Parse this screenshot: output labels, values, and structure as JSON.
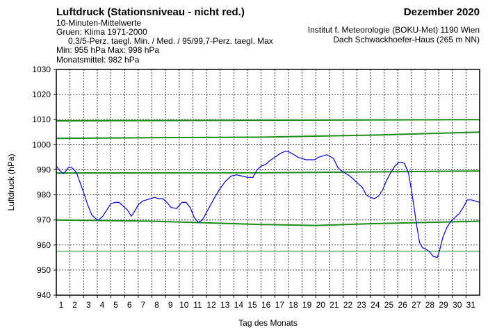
{
  "header": {
    "title": "Luftdruck (Stationsniveau - nicht red.)",
    "subtitle": "10-Minuten-Mittelwerte",
    "climate_note": "Gruen: Klima 1971-2000",
    "percentile_note": "0,3/5-Perz. taegl. Min. / Med. / 95/99,7-Perz. taegl. Max",
    "min_max": "Min:  955 hPa   Max:  998 hPa",
    "monthly_mean": "Monatsmittel:  982 hPa",
    "month": "Dezember 2020",
    "institute": "Institut f. Meteorologie (BOKU-Met) 1190 Wien",
    "location": "Dach Schwackhoefer-Haus (265 m NN)"
  },
  "colors": {
    "observed": "#0000c8",
    "climate": "#1a8c1a",
    "grid": "#000000"
  },
  "chart_data": {
    "type": "line",
    "xlabel": "Tag des Monats",
    "ylabel": "Luftdruck (hPa)",
    "xlim": [
      1,
      32
    ],
    "ylim": [
      940,
      1030
    ],
    "grid": true,
    "x_ticks": [
      "1",
      "2",
      "3",
      "4",
      "5",
      "6",
      "7",
      "8",
      "9",
      "10",
      "11",
      "12",
      "13",
      "14",
      "15",
      "16",
      "17",
      "18",
      "19",
      "20",
      "21",
      "22",
      "23",
      "24",
      "25",
      "26",
      "27",
      "28",
      "29",
      "30",
      "31"
    ],
    "y_ticks": [
      "940",
      "950",
      "960",
      "970",
      "980",
      "990",
      "1000",
      "1010",
      "1020",
      "1030"
    ],
    "series": [
      {
        "role": "observed",
        "x": [
          1.0,
          1.2,
          1.5,
          1.7,
          1.9,
          2.1,
          2.3,
          2.5,
          2.8,
          3.0,
          3.3,
          3.6,
          3.9,
          4.1,
          4.4,
          4.7,
          5.0,
          5.3,
          5.6,
          5.9,
          6.2,
          6.5,
          6.8,
          7.0,
          7.3,
          7.6,
          7.9,
          8.2,
          8.5,
          8.8,
          9.1,
          9.4,
          9.8,
          10.2,
          10.5,
          10.8,
          11.1,
          11.4,
          11.7,
          12.0,
          12.3,
          12.6,
          13.0,
          13.4,
          13.8,
          14.2,
          14.6,
          15.0,
          15.4,
          15.7,
          16.0,
          16.3,
          16.6,
          17.0,
          17.4,
          17.8,
          18.1,
          18.4,
          18.7,
          19.0,
          19.3,
          19.6,
          19.9,
          20.2,
          20.5,
          20.8,
          21.0,
          21.3,
          21.6,
          21.9,
          22.2,
          22.5,
          22.8,
          23.1,
          23.4,
          23.7,
          24.0,
          24.3,
          24.6,
          24.9,
          25.2,
          25.5,
          25.8,
          26.1,
          26.3,
          26.5,
          26.8,
          27.0,
          27.2,
          27.4,
          27.6,
          27.8,
          28.0,
          28.3,
          28.6,
          28.9,
          29.1,
          29.3,
          29.6,
          29.9,
          30.2,
          30.5,
          30.8,
          31.1,
          31.4,
          31.7,
          32.0
        ],
        "y": [
          991.5,
          990,
          988.5,
          989.5,
          991,
          991,
          990,
          988.5,
          984,
          981,
          976,
          972,
          970.5,
          970,
          971.5,
          974,
          976.5,
          977,
          977,
          975.5,
          974,
          971.5,
          974,
          976,
          977.5,
          978,
          978.5,
          979,
          978.5,
          978.5,
          977,
          975,
          974.5,
          977,
          977,
          975,
          971,
          969,
          970,
          973,
          976,
          979,
          982.5,
          985.5,
          987.5,
          988,
          987.5,
          987,
          987,
          990,
          991.5,
          992,
          993.5,
          995,
          996.5,
          997.5,
          997,
          996,
          995,
          994.5,
          994,
          994,
          994,
          995,
          995.5,
          996,
          995.5,
          994.5,
          991,
          989.5,
          988.5,
          987.5,
          986,
          984.5,
          983,
          980,
          979,
          978.5,
          979.5,
          982,
          986,
          989,
          991.5,
          993,
          993,
          992.5,
          988.5,
          982,
          975,
          967.5,
          961,
          959,
          958.5,
          957.5,
          955.5,
          955,
          958.5,
          963,
          967,
          969.5,
          971,
          972.5,
          975,
          978,
          978,
          977.5,
          977
        ]
      },
      {
        "role": "climate-99.7-max",
        "x": [
          1,
          32
        ],
        "y": [
          1009.5,
          1010
        ]
      },
      {
        "role": "climate-95-max",
        "x": [
          1,
          8,
          16,
          24,
          32
        ],
        "y": [
          1002.5,
          1002.8,
          1003,
          1003.8,
          1005
        ]
      },
      {
        "role": "climate-median",
        "x": [
          1,
          16,
          32
        ],
        "y": [
          988.7,
          988.8,
          989.5
        ]
      },
      {
        "role": "climate-5-min",
        "x": [
          1,
          8,
          16,
          20,
          24,
          32
        ],
        "y": [
          970,
          969.5,
          968.2,
          967.8,
          968.5,
          969.5
        ]
      },
      {
        "role": "climate-0.3-min",
        "x": [
          1,
          32
        ],
        "y": [
          957.5,
          957.5
        ]
      }
    ]
  }
}
